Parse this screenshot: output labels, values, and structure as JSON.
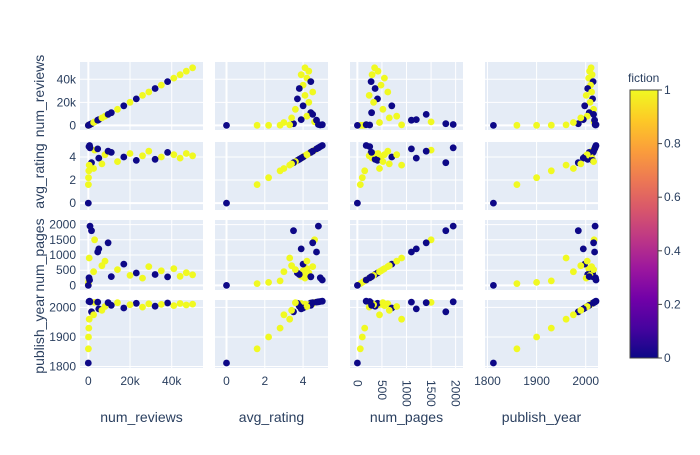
{
  "chart_data": {
    "type": "scatter",
    "variables": [
      "num_reviews",
      "avg_rating",
      "num_pages",
      "publish_year"
    ],
    "axis_labels": {
      "num_reviews": "num_reviews",
      "avg_rating": "avg_rating",
      "num_pages": "num_pages",
      "publish_year": "publish_year"
    },
    "x_ticks": {
      "num_reviews": [
        {
          "v": 0,
          "label": "0"
        },
        {
          "v": 20000,
          "label": "20k"
        },
        {
          "v": 40000,
          "label": "40k"
        }
      ],
      "avg_rating": [
        {
          "v": 0,
          "label": "0"
        },
        {
          "v": 2,
          "label": "2"
        },
        {
          "v": 4,
          "label": "4"
        }
      ],
      "num_pages": [
        {
          "v": 0,
          "label": "0"
        },
        {
          "v": 500,
          "label": "500"
        },
        {
          "v": 1000,
          "label": "1000"
        },
        {
          "v": 1500,
          "label": "1500"
        },
        {
          "v": 2000,
          "label": "2000"
        }
      ],
      "publish_year": [
        {
          "v": 1800,
          "label": "1800"
        },
        {
          "v": 1900,
          "label": "1900"
        },
        {
          "v": 2000,
          "label": "2000"
        }
      ]
    },
    "y_ticks": {
      "num_reviews": [
        {
          "v": 0,
          "label": "0"
        },
        {
          "v": 20000,
          "label": "20k"
        },
        {
          "v": 40000,
          "label": "40k"
        }
      ],
      "avg_rating": [
        {
          "v": 0,
          "label": "0"
        },
        {
          "v": 2,
          "label": "2"
        },
        {
          "v": 4,
          "label": "4"
        }
      ],
      "num_pages": [
        {
          "v": 0,
          "label": "0"
        },
        {
          "v": 500,
          "label": "500"
        },
        {
          "v": 1000,
          "label": "1000"
        },
        {
          "v": 1500,
          "label": "1500"
        },
        {
          "v": 2000,
          "label": "2000"
        }
      ],
      "publish_year": [
        {
          "v": 1800,
          "label": "1800"
        },
        {
          "v": 1900,
          "label": "1900"
        },
        {
          "v": 2000,
          "label": "2000"
        }
      ]
    },
    "ranges": {
      "num_reviews": [
        -4000,
        55000
      ],
      "avg_rating": [
        -0.6,
        5.3
      ],
      "num_pages": [
        -150,
        2150
      ],
      "publish_year": [
        1795,
        2025
      ]
    },
    "colorbar": {
      "title": "fiction",
      "range": [
        0,
        1
      ],
      "ticks": [
        {
          "v": 0,
          "label": "0"
        },
        {
          "v": 0.2,
          "label": "0.2"
        },
        {
          "v": 0.4,
          "label": "0.4"
        },
        {
          "v": 0.6,
          "label": "0.6"
        },
        {
          "v": 0.8,
          "label": "0.8"
        },
        {
          "v": 1,
          "label": "1"
        }
      ],
      "colorscale": [
        "#0d0887",
        "#46039f",
        "#7201a8",
        "#9c179e",
        "#bd3786",
        "#d8576b",
        "#ed7953",
        "#fb9f3a",
        "#fdca26",
        "#f0f921"
      ]
    },
    "points": [
      {
        "num_reviews": 50000,
        "avg_rating": 4.1,
        "num_pages": 350,
        "publish_year": 2011,
        "fiction": 1
      },
      {
        "num_reviews": 47000,
        "avg_rating": 4.3,
        "num_pages": 420,
        "publish_year": 2008,
        "fiction": 1
      },
      {
        "num_reviews": 44000,
        "avg_rating": 3.9,
        "num_pages": 300,
        "publish_year": 2013,
        "fiction": 1
      },
      {
        "num_reviews": 41000,
        "avg_rating": 4.2,
        "num_pages": 550,
        "publish_year": 2006,
        "fiction": 1
      },
      {
        "num_reviews": 38000,
        "avg_rating": 4.4,
        "num_pages": 280,
        "publish_year": 2015,
        "fiction": 0
      },
      {
        "num_reviews": 35000,
        "avg_rating": 4.0,
        "num_pages": 480,
        "publish_year": 2010,
        "fiction": 1
      },
      {
        "num_reviews": 32000,
        "avg_rating": 3.8,
        "num_pages": 360,
        "publish_year": 2004,
        "fiction": 0
      },
      {
        "num_reviews": 29000,
        "avg_rating": 4.5,
        "num_pages": 620,
        "publish_year": 2012,
        "fiction": 1
      },
      {
        "num_reviews": 26000,
        "avg_rating": 4.1,
        "num_pages": 240,
        "publish_year": 2001,
        "fiction": 1
      },
      {
        "num_reviews": 23000,
        "avg_rating": 3.7,
        "num_pages": 410,
        "publish_year": 2014,
        "fiction": 0
      },
      {
        "num_reviews": 20000,
        "avg_rating": 4.3,
        "num_pages": 330,
        "publish_year": 2009,
        "fiction": 1
      },
      {
        "num_reviews": 17000,
        "avg_rating": 4.0,
        "num_pages": 700,
        "publish_year": 1998,
        "fiction": 0
      },
      {
        "num_reviews": 14000,
        "avg_rating": 3.6,
        "num_pages": 520,
        "publish_year": 2016,
        "fiction": 1
      },
      {
        "num_reviews": 11000,
        "avg_rating": 4.4,
        "num_pages": 290,
        "publish_year": 2007,
        "fiction": 0
      },
      {
        "num_reviews": 8000,
        "avg_rating": 4.2,
        "num_pages": 800,
        "publish_year": 2003,
        "fiction": 1
      },
      {
        "num_reviews": 5000,
        "avg_rating": 3.9,
        "num_pages": 1200,
        "publish_year": 1995,
        "fiction": 0
      },
      {
        "num_reviews": 3000,
        "avg_rating": 4.6,
        "num_pages": 1500,
        "publish_year": 2017,
        "fiction": 1
      },
      {
        "num_reviews": 1500,
        "avg_rating": 3.5,
        "num_pages": 1800,
        "publish_year": 1985,
        "fiction": 0
      },
      {
        "num_reviews": 800,
        "avg_rating": 4.8,
        "num_pages": 1950,
        "publish_year": 2019,
        "fiction": 0
      },
      {
        "num_reviews": 400,
        "avg_rating": 3.3,
        "num_pages": 900,
        "publish_year": 1960,
        "fiction": 1
      },
      {
        "num_reviews": 200,
        "avg_rating": 2.8,
        "num_pages": 150,
        "publish_year": 1930,
        "fiction": 1
      },
      {
        "num_reviews": 100,
        "avg_rating": 2.2,
        "num_pages": 100,
        "publish_year": 1900,
        "fiction": 1
      },
      {
        "num_reviews": 50,
        "avg_rating": 1.6,
        "num_pages": 60,
        "publish_year": 1860,
        "fiction": 1
      },
      {
        "num_reviews": 0,
        "avg_rating": 0,
        "num_pages": 0,
        "publish_year": 1812,
        "fiction": 0
      },
      {
        "num_reviews": 300,
        "avg_rating": 4.9,
        "num_pages": 250,
        "publish_year": 2020,
        "fiction": 0
      },
      {
        "num_reviews": 600,
        "avg_rating": 5.0,
        "num_pages": 180,
        "publish_year": 2021,
        "fiction": 0
      },
      {
        "num_reviews": 2500,
        "avg_rating": 3.0,
        "num_pages": 450,
        "publish_year": 1975,
        "fiction": 1
      },
      {
        "num_reviews": 4500,
        "avg_rating": 4.7,
        "num_pages": 1100,
        "publish_year": 2018,
        "fiction": 0
      },
      {
        "num_reviews": 6500,
        "avg_rating": 3.4,
        "num_pages": 650,
        "publish_year": 1990,
        "fiction": 1
      },
      {
        "num_reviews": 9500,
        "avg_rating": 4.5,
        "num_pages": 1400,
        "publish_year": 2016,
        "fiction": 0
      }
    ]
  }
}
